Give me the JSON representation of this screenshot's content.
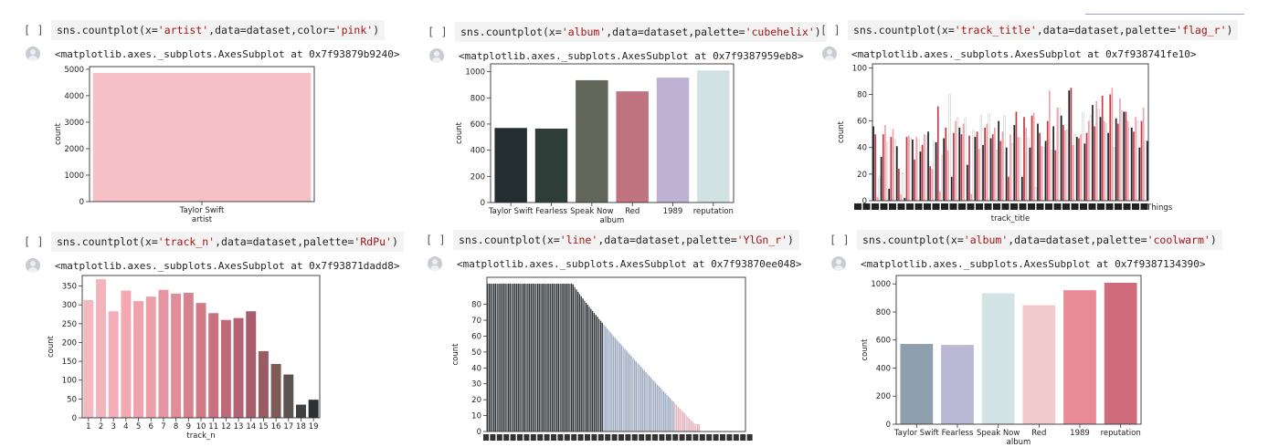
{
  "cells": [
    {
      "bracket": "[ ]",
      "code": {
        "pre": "sns.countplot(x=",
        "s1": "'artist'",
        "mid": ",data=dataset,color=",
        "s2": "'pink'",
        "post": ")"
      },
      "output": "<matplotlib.axes._subplots.AxesSubplot at 0x7f93879b9240>"
    },
    {
      "bracket": "[ ]",
      "code": {
        "pre": "sns.countplot(x=",
        "s1": "'album'",
        "mid": ",data=dataset,palette=",
        "s2": "'cubehelix'",
        "post": ")"
      },
      "output": "<matplotlib.axes._subplots.AxesSubplot at 0x7f9387959eb8>"
    },
    {
      "bracket": "[ ]",
      "code": {
        "pre": "sns.countplot(x=",
        "s1": "'track_title'",
        "mid": ",data=dataset,palette=",
        "s2": "'flag_r'",
        "post": ")"
      },
      "output": "<matplotlib.axes._subplots.AxesSubplot at 0x7f938741fe10>"
    },
    {
      "bracket": "[ ]",
      "code": {
        "pre": "sns.countplot(x=",
        "s1": "'track_n'",
        "mid": ",data=dataset,palette=",
        "s2": "'RdPu'",
        "post": ")"
      },
      "output": "<matplotlib.axes._subplots.AxesSubplot at 0x7f93871dadd8>"
    },
    {
      "bracket": "[ ]",
      "code": {
        "pre": "sns.countplot(x=",
        "s1": "'line'",
        "mid": ",data=dataset,palette=",
        "s2": "'YlGn_r'",
        "post": ")"
      },
      "output": "<matplotlib.axes._subplots.AxesSubplot at 0x7f93870ee048>"
    },
    {
      "bracket": "[ ]",
      "code": {
        "pre": "sns.countplot(x=",
        "s1": "'album'",
        "mid": ",data=dataset,palette=",
        "s2": "'coolwarm'",
        "post": ")"
      },
      "output": "<matplotlib.axes._subplots.AxesSubplot at 0x7f9387134390>"
    }
  ],
  "chart_data": [
    {
      "type": "bar",
      "categories": [
        "Taylor Swift"
      ],
      "values": [
        4860
      ],
      "xlabel": "artist",
      "ylabel": "count",
      "ylim": [
        0,
        5100
      ],
      "yticks": [
        0,
        1000,
        2000,
        3000,
        4000,
        5000
      ],
      "colors": [
        "#f6c0c6"
      ]
    },
    {
      "type": "bar",
      "categories": [
        "Taylor Swift",
        "Fearless",
        "Speak Now",
        "Red",
        "1989",
        "reputation"
      ],
      "values": [
        570,
        565,
        935,
        850,
        955,
        1010
      ],
      "xlabel": "album",
      "ylabel": "count",
      "ylim": [
        0,
        1060
      ],
      "yticks": [
        0,
        200,
        400,
        600,
        800,
        1000
      ],
      "colors": [
        "#232e33",
        "#2f3d38",
        "#62665b",
        "#c07480",
        "#bdb2d1",
        "#d2e2e2"
      ]
    },
    {
      "type": "bar",
      "values": [
        56,
        50,
        3,
        18,
        33,
        50,
        57,
        44,
        9,
        48,
        54,
        46,
        41,
        24,
        5,
        21,
        2,
        48,
        49,
        47,
        46,
        31,
        48,
        46,
        37,
        42,
        50,
        49,
        52,
        26,
        24,
        45,
        44,
        71,
        7,
        34,
        47,
        55,
        38,
        80,
        18,
        51,
        60,
        62,
        55,
        50,
        58,
        62,
        27,
        49,
        5,
        53,
        48,
        52,
        39,
        64,
        42,
        55,
        58,
        65,
        47,
        50,
        55,
        38,
        60,
        45,
        52,
        64,
        40,
        18,
        50,
        43,
        57,
        67,
        48,
        47,
        18,
        63,
        55,
        47,
        40,
        64,
        66,
        10,
        58,
        51,
        41,
        40,
        45,
        60,
        83,
        38,
        56,
        38,
        70,
        70,
        64,
        57,
        53,
        53,
        83,
        85,
        42,
        50,
        48,
        47,
        50,
        66,
        43,
        51,
        60,
        64,
        72,
        56,
        75,
        69,
        63,
        79,
        60,
        58,
        51,
        80,
        85,
        40,
        62,
        58,
        77,
        68,
        67,
        67,
        60,
        55,
        55,
        52,
        63,
        60,
        40,
        60,
        70,
        45,
        45
      ],
      "xlabel": "track_title",
      "ylabel": "count",
      "ylim": [
        0,
        103
      ],
      "yticks": [
        0,
        20,
        40,
        60,
        80,
        100
      ],
      "tick_label": "Things",
      "colors": [
        "#1f2329",
        "#c33a48",
        "#f0a4ad",
        "#ffffff"
      ]
    },
    {
      "type": "bar",
      "categories": [
        "1",
        "2",
        "3",
        "4",
        "5",
        "6",
        "7",
        "8",
        "9",
        "10",
        "11",
        "12",
        "13",
        "14",
        "15",
        "16",
        "17",
        "18",
        "19"
      ],
      "values": [
        313,
        368,
        283,
        338,
        310,
        322,
        340,
        330,
        332,
        305,
        278,
        260,
        265,
        283,
        177,
        143,
        115,
        35,
        48
      ],
      "xlabel": "track_n",
      "ylabel": "count",
      "ylim": [
        0,
        378
      ],
      "yticks": [
        0,
        50,
        100,
        150,
        200,
        250,
        300,
        350
      ],
      "colors": [
        "#f3b9c0",
        "#f4b4bc",
        "#f4aeb7",
        "#f4a9b2",
        "#f1a1ac",
        "#eda0aa",
        "#e696a2",
        "#e08c99",
        "#d8828f",
        "#d07a88",
        "#c87180",
        "#bf6a79",
        "#b46273",
        "#a95c6c",
        "#9a5b62",
        "#7e5b57",
        "#5d534e",
        "#3f4042",
        "#2a3033"
      ]
    },
    {
      "type": "bar",
      "n": 160,
      "xlabel": "",
      "ylabel": "count",
      "ylim": [
        0,
        97
      ],
      "yticks": [
        0,
        10,
        20,
        30,
        40,
        50,
        60,
        70,
        80
      ],
      "tick_label": "1",
      "colors": [
        "#2e3438",
        "#9aa8be",
        "#e2b2bc",
        "#ffffff"
      ]
    },
    {
      "type": "bar",
      "categories": [
        "Taylor Swift",
        "Fearless",
        "Speak Now",
        "Red",
        "1989",
        "reputation"
      ],
      "values": [
        572,
        565,
        933,
        848,
        955,
        1008
      ],
      "xlabel": "album",
      "ylabel": "count",
      "ylim": [
        0,
        1060
      ],
      "yticks": [
        0,
        200,
        400,
        600,
        800,
        1000
      ],
      "colors": [
        "#8ea0b0",
        "#bbb8d6",
        "#d2e4e4",
        "#f2cacd",
        "#e98a97",
        "#d06b7c"
      ]
    }
  ]
}
